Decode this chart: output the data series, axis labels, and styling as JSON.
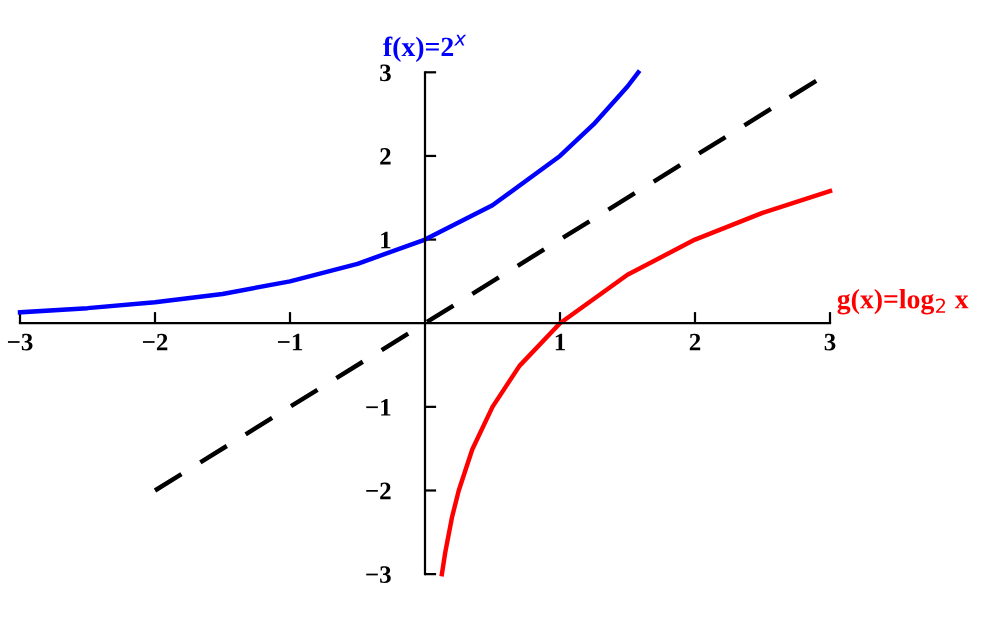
{
  "chart_data": {
    "type": "line",
    "xlim": [
      -3,
      3
    ],
    "ylim": [
      -3,
      3
    ],
    "xticks": [
      -3,
      -2,
      -1,
      1,
      2,
      3
    ],
    "yticks": [
      -3,
      -2,
      -1,
      1,
      2,
      3
    ],
    "grid": false,
    "legend": false,
    "marker": "none",
    "series": [
      {
        "name": "f(x)=2$^{x}$",
        "color": "#0000ff",
        "line_style": "solid",
        "x": [
          -3,
          -2.5,
          -2,
          -1.5,
          -1,
          -0.5,
          0,
          0.5,
          1,
          1.25,
          1.5,
          1.58
        ],
        "values": [
          0.13,
          0.18,
          0.25,
          0.35,
          0.5,
          0.71,
          1,
          1.41,
          2,
          2.38,
          2.83,
          3
        ]
      },
      {
        "color": "#000000",
        "line_style": "dashed",
        "x": [
          -2,
          2.9
        ],
        "values": [
          -2,
          2.9
        ]
      },
      {
        "name": "g(x)=log$_{2}$ x",
        "color": "#ff0000",
        "line_style": "solid",
        "x": [
          0.125,
          0.15,
          0.2,
          0.25,
          0.35,
          0.5,
          0.7,
          1,
          1.5,
          2,
          2.5,
          3
        ],
        "values": [
          -3,
          -2.74,
          -2.32,
          -2,
          -1.51,
          -1,
          -0.51,
          0,
          0.58,
          1,
          1.32,
          1.58
        ]
      }
    ]
  }
}
